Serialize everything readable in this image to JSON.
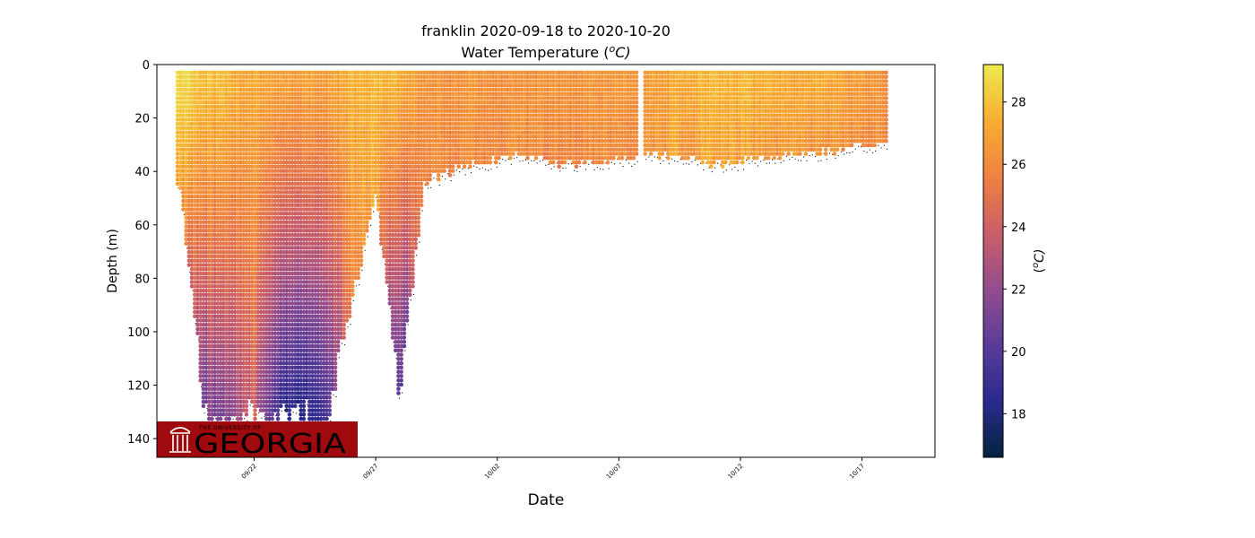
{
  "chart_data": {
    "type": "scatter",
    "title": "franklin 2020-09-18 to 2020-10-20",
    "subtitle": "Water Temperature (",
    "subtitle_unit": "o",
    "subtitle_suffix": "C)",
    "xlabel": "Date",
    "ylabel": "Depth (m)",
    "x_range": [
      "2020-09-18",
      "2020-10-20"
    ],
    "x_ticks": [
      "09/22",
      "09/27",
      "10/02",
      "10/07",
      "10/12",
      "10/17"
    ],
    "x_tick_dates": [
      "2020-09-22",
      "2020-09-27",
      "2020-10-02",
      "2020-10-07",
      "2020-10-12",
      "2020-10-17"
    ],
    "y_ticks": [
      0,
      20,
      40,
      60,
      80,
      100,
      120,
      140
    ],
    "ylim": [
      147,
      0
    ],
    "y_inverted": true,
    "grid": false,
    "colorbar": {
      "label_prefix": "(",
      "label_unit": "o",
      "label_suffix": "C)",
      "ticks": [
        18,
        20,
        22,
        24,
        26,
        28
      ],
      "range": [
        16.6,
        29.2
      ],
      "colormap": "thermal",
      "stops": [
        "#04233e",
        "#2a2a8e",
        "#5a3c98",
        "#934d8e",
        "#cb5e68",
        "#ef8142",
        "#f8ae32",
        "#ecea4e"
      ]
    },
    "profiles": {
      "description_of_series": "vertical CTD profiles: date, bottom depth (m), surface temperature (°C), bottom temperature (°C)",
      "day_values": [
        {
          "x": "2020-09-19",
          "max_depth": 48,
          "t_top": 28.6,
          "t_bottom": 26.8
        },
        {
          "x": "2020-09-20",
          "max_depth": 135,
          "t_top": 28.0,
          "t_bottom": 20.5
        },
        {
          "x": "2020-09-21",
          "max_depth": 135,
          "t_top": 27.5,
          "t_bottom": 21.5
        },
        {
          "x": "2020-09-22",
          "max_depth": 135,
          "t_top": 27.3,
          "t_bottom": 23.5
        },
        {
          "x": "2020-09-23",
          "max_depth": 135,
          "t_top": 27.2,
          "t_bottom": 19.0
        },
        {
          "x": "2020-09-24",
          "max_depth": 135,
          "t_top": 27.0,
          "t_bottom": 17.5
        },
        {
          "x": "2020-09-25",
          "max_depth": 135,
          "t_top": 26.8,
          "t_bottom": 19.5
        },
        {
          "x": "2020-09-26",
          "max_depth": 90,
          "t_top": 27.5,
          "t_bottom": 25.5
        },
        {
          "x": "2020-09-27",
          "max_depth": 50,
          "t_top": 27.8,
          "t_bottom": 27.0
        },
        {
          "x": "2020-09-28",
          "max_depth": 125,
          "t_top": 27.5,
          "t_bottom": 19.5
        },
        {
          "x": "2020-09-29",
          "max_depth": 45,
          "t_top": 26.5,
          "t_bottom": 26.0
        },
        {
          "x": "2020-10-01",
          "max_depth": 38,
          "t_top": 26.5,
          "t_bottom": 26.0
        },
        {
          "x": "2020-10-03",
          "max_depth": 35,
          "t_top": 26.3,
          "t_bottom": 26.0
        },
        {
          "x": "2020-10-05",
          "max_depth": 38,
          "t_top": 26.5,
          "t_bottom": 26.0
        },
        {
          "x": "2020-10-07",
          "max_depth": 36,
          "t_top": 26.6,
          "t_bottom": 26.2
        },
        {
          "x": "2020-10-09",
          "max_depth": 35,
          "t_top": 27.0,
          "t_bottom": 26.5
        },
        {
          "x": "2020-10-11",
          "max_depth": 38,
          "t_top": 27.8,
          "t_bottom": 27.0
        },
        {
          "x": "2020-10-13",
          "max_depth": 36,
          "t_top": 27.5,
          "t_bottom": 26.5
        },
        {
          "x": "2020-10-15",
          "max_depth": 34,
          "t_top": 27.3,
          "t_bottom": 26.3
        },
        {
          "x": "2020-10-17",
          "max_depth": 31,
          "t_top": 26.8,
          "t_bottom": 26.0
        },
        {
          "x": "2020-10-18",
          "max_depth": 30,
          "t_top": 26.0,
          "t_bottom": 25.8
        },
        {
          "x": "2020-10-19",
          "max_depth": 31,
          "t_top": 26.0,
          "t_bottom": 25.8
        }
      ]
    }
  },
  "logo": {
    "small_text": "THE UNIVERSITY OF",
    "big_text": "GEORGIA",
    "bg_color": "#9e0a0e",
    "text_color": "#ffffff",
    "icon": "arch-columns-icon"
  }
}
